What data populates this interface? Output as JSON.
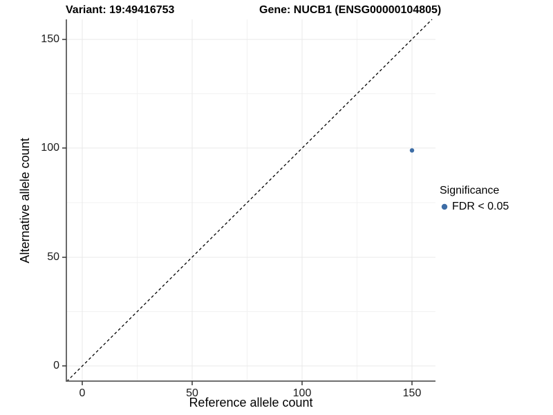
{
  "chart_data": {
    "type": "scatter",
    "title_left": "Variant: 19:49416753",
    "title_right": "Gene: NUCB1 (ENSG00000104805)",
    "xlabel": "Reference allele count",
    "ylabel": "Alternative allele count",
    "x_ticks": [
      0,
      50,
      100,
      150
    ],
    "y_ticks": [
      0,
      50,
      100,
      150
    ],
    "xlim": [
      -7,
      161
    ],
    "ylim": [
      -8,
      159
    ],
    "grid": {
      "major": [
        0,
        50,
        100,
        150
      ],
      "minor": [
        25,
        75,
        125
      ],
      "major_color": "#e8e8e8",
      "minor_color": "#f2f2f2"
    },
    "reference_line": {
      "meaning": "identity y = x",
      "style": "dashed",
      "color": "#000000"
    },
    "series": [
      {
        "name": "FDR < 0.05",
        "color": "#3d6da6",
        "points": [
          {
            "x": 150,
            "y": 99
          }
        ]
      }
    ],
    "legend": {
      "title": "Significance",
      "position": "right",
      "entries": [
        {
          "label": "FDR < 0.05",
          "color": "#3d6da6"
        }
      ]
    },
    "axis_line_color": "#595959",
    "tick_color": "#333333"
  }
}
